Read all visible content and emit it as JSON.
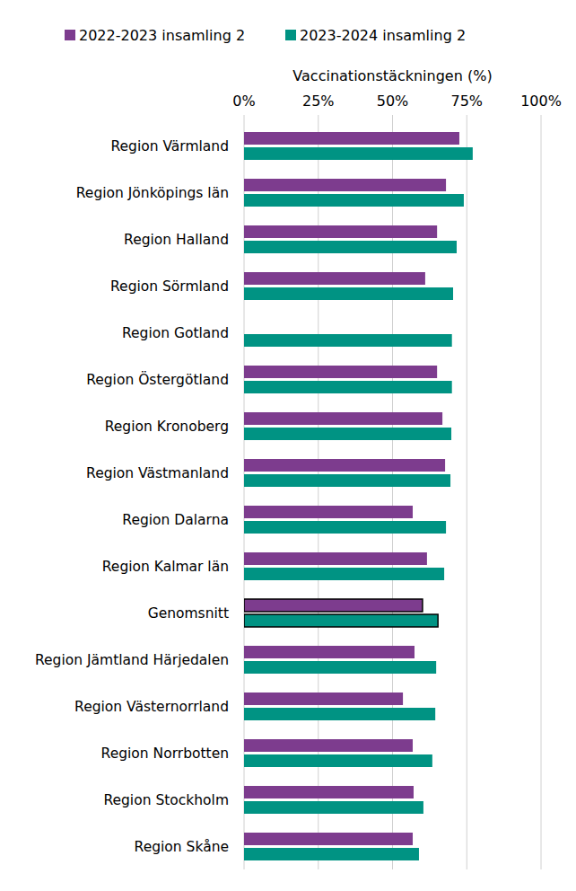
{
  "chart_data": {
    "type": "bar",
    "orientation": "horizontal",
    "xlabel": "Vaccinationstäckningen (%)",
    "categories": [
      "Region Värmland",
      "Region Jönköpings län",
      "Region Halland",
      "Region Sörmland",
      "Region Gotland",
      "Region Östergötland",
      "Region Kronoberg",
      "Region Västmanland",
      "Region Dalarna",
      "Region Kalmar län",
      "Genomsnitt",
      "Region Jämtland Härjedalen",
      "Region Västernorrland",
      "Region Norrbotten",
      "Region Stockholm",
      "Region Skåne"
    ],
    "series": [
      {
        "name": "2022-2023 insamling 2",
        "color": "#7d3c8e",
        "values": [
          72.5,
          68,
          65,
          61,
          null,
          65,
          66.8,
          67.7,
          56.8,
          61.6,
          60.1,
          57.4,
          53.5,
          56.8,
          57.1,
          56.8
        ]
      },
      {
        "name": "2023-2024 insamling 2",
        "color": "#009383",
        "values": [
          77,
          74,
          71.6,
          70.4,
          70,
          70,
          69.8,
          69.5,
          68,
          67.4,
          65.3,
          64.7,
          64.4,
          63.4,
          60.4,
          58.9
        ]
      }
    ],
    "xlim": [
      0,
      100
    ],
    "xticks": [
      {
        "value": 0,
        "label": "0%"
      },
      {
        "value": 25,
        "label": "25%"
      },
      {
        "value": 50,
        "label": "50%"
      },
      {
        "value": 75,
        "label": "75%"
      },
      {
        "value": 100,
        "label": "100%"
      }
    ],
    "grid": true,
    "legend": "top"
  }
}
